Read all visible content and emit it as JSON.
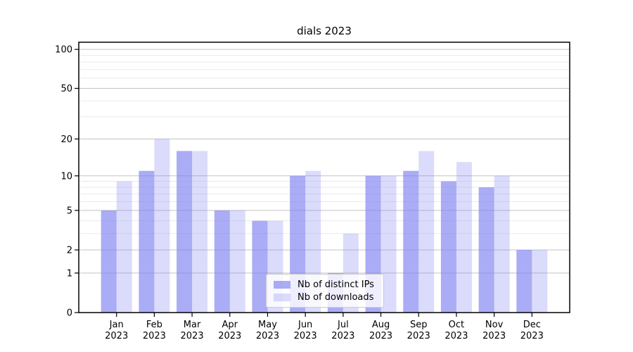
{
  "chart_data": {
    "type": "bar",
    "title": "dials 2023",
    "categories": [
      "Jan",
      "Feb",
      "Mar",
      "Apr",
      "May",
      "Jun",
      "Jul",
      "Aug",
      "Sep",
      "Oct",
      "Nov",
      "Dec"
    ],
    "year_label": "2023",
    "series": [
      {
        "name": "Nb of distinct IPs",
        "color": "rgba(124,128,239,0.65)",
        "values": [
          5,
          11,
          16,
          5,
          4,
          10,
          1,
          10,
          11,
          9,
          8,
          2
        ]
      },
      {
        "name": "Nb of downloads",
        "color": "rgba(124,128,239,0.28)",
        "values": [
          9,
          20,
          16,
          5,
          4,
          11,
          3,
          10,
          16,
          13,
          10,
          2
        ]
      }
    ],
    "yscale": "symlog (y proportional to ln(1+v))",
    "yticks_major": [
      0,
      1,
      2,
      5,
      10,
      20,
      50,
      100
    ],
    "yticks_minor": [
      3,
      4,
      6,
      7,
      8,
      9,
      30,
      40,
      60,
      70,
      80,
      90
    ],
    "ylim": [
      0,
      113
    ],
    "grid": true,
    "legend_position": "lower center"
  },
  "colors": {
    "grid_major": "#c3c3c3",
    "grid_minor": "#eaeaea",
    "frame": "#000000",
    "text": "#000000"
  }
}
